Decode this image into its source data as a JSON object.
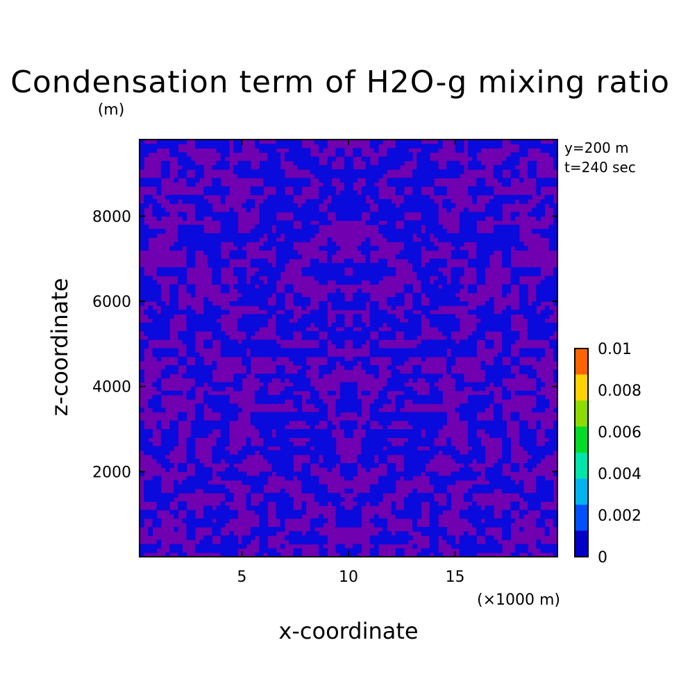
{
  "chart_data": {
    "type": "heatmap",
    "title": "Condensation term of H2O-g mixing ratio",
    "xlabel": "x-coordinate",
    "ylabel": "z-coordinate",
    "x_unit_label": "(×1000 m)",
    "y_unit_label": "(m)",
    "annotations": [
      "y=200 m",
      "t=240 sec"
    ],
    "xlim": [
      0.2,
      19.8
    ],
    "ylim": [
      0,
      9800
    ],
    "x_ticks": [
      5,
      10,
      15
    ],
    "x_tick_labels": [
      "5",
      "10",
      "15"
    ],
    "y_ticks": [
      2000,
      4000,
      6000,
      8000
    ],
    "y_tick_labels": [
      "2000",
      "4000",
      "6000",
      "8000"
    ],
    "colorbar": {
      "levels": [
        0,
        0.00125,
        0.0025,
        0.00375,
        0.005,
        0.00625,
        0.0075,
        0.00875,
        0.01
      ],
      "tick_values": [
        0,
        0.002,
        0.004,
        0.006,
        0.008,
        0.01
      ],
      "tick_labels": [
        "0",
        "0.002",
        "0.004",
        "0.006",
        "0.008",
        "0.01"
      ],
      "colors": [
        "#0000c8",
        "#0050ff",
        "#00b4f0",
        "#00e6aa",
        "#00dc28",
        "#8cdc00",
        "#ffd200",
        "#ff6400",
        "#ff1e1e"
      ]
    },
    "field_colors": {
      "background_region": "#7000b0",
      "low_region": "#0a0adc"
    },
    "grid": false
  }
}
